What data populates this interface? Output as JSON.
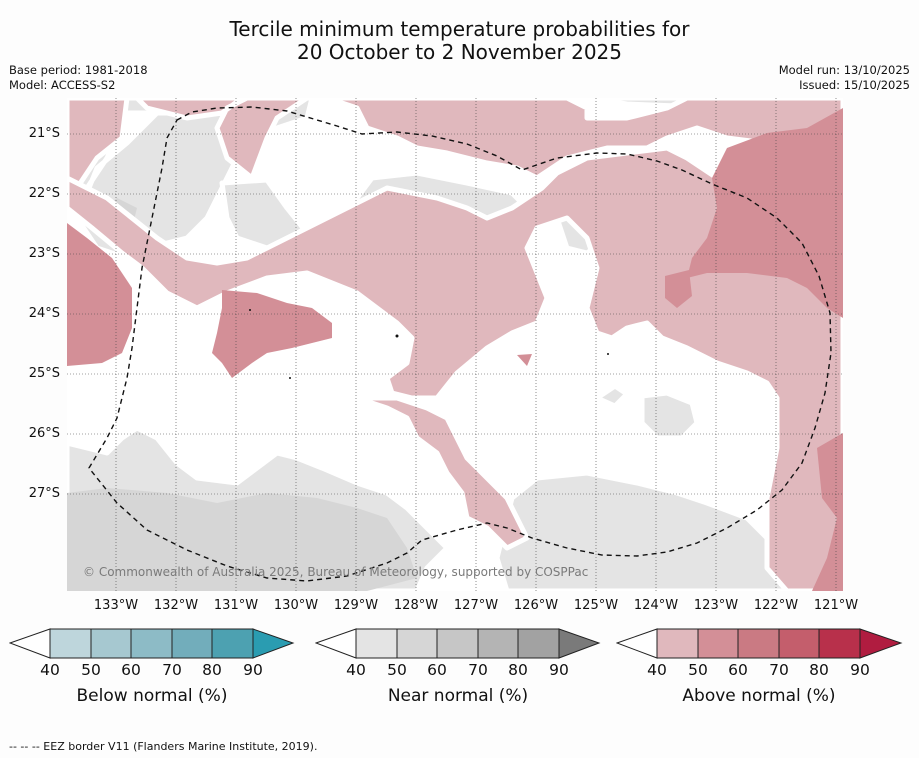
{
  "title": {
    "line1": "Tercile minimum temperature probabilities for",
    "line2": "20 October to 2 November 2025"
  },
  "meta": {
    "base_period": "Base period: 1981-2018",
    "model": "Model: ACCESS-S2",
    "model_run": "Model run: 13/10/2025",
    "issued": "Issued: 15/10/2025"
  },
  "map": {
    "lat_labels": [
      "21°S",
      "22°S",
      "23°S",
      "24°S",
      "25°S",
      "26°S",
      "27°S"
    ],
    "lon_labels": [
      "133°W",
      "132°W",
      "131°W",
      "130°W",
      "129°W",
      "128°W",
      "127°W",
      "126°W",
      "125°W",
      "124°W",
      "123°W",
      "122°W",
      "121°W"
    ],
    "copyright": "© Commonwealth of Australia 2025, Bureau of Meteorology, supported by COSPPac"
  },
  "colors": {
    "below": [
      "#bed6dc",
      "#a6c8d0",
      "#8dbbc6",
      "#72adbb",
      "#4da1b1",
      "#2a9cb1"
    ],
    "near": [
      "#e4e4e4",
      "#d6d6d6",
      "#c6c6c6",
      "#b4b4b4",
      "#a2a2a2",
      "#7a7a7a"
    ],
    "above": [
      "#e0b8bd",
      "#d38f97",
      "#ca7a83",
      "#c45e6c",
      "#b8304b",
      "#b01c40"
    ]
  },
  "legends": [
    {
      "id": "below",
      "label": "Below normal (%)",
      "ticks": [
        "40",
        "50",
        "60",
        "70",
        "80",
        "90"
      ]
    },
    {
      "id": "near",
      "label": "Near normal (%)",
      "ticks": [
        "40",
        "50",
        "60",
        "70",
        "80",
        "90"
      ]
    },
    {
      "id": "above",
      "label": "Above normal (%)",
      "ticks": [
        "40",
        "50",
        "60",
        "70",
        "80",
        "90"
      ]
    }
  ],
  "footnote": "--  --  -- EEZ border V11 (Flanders Marine Institute, 2019)."
}
